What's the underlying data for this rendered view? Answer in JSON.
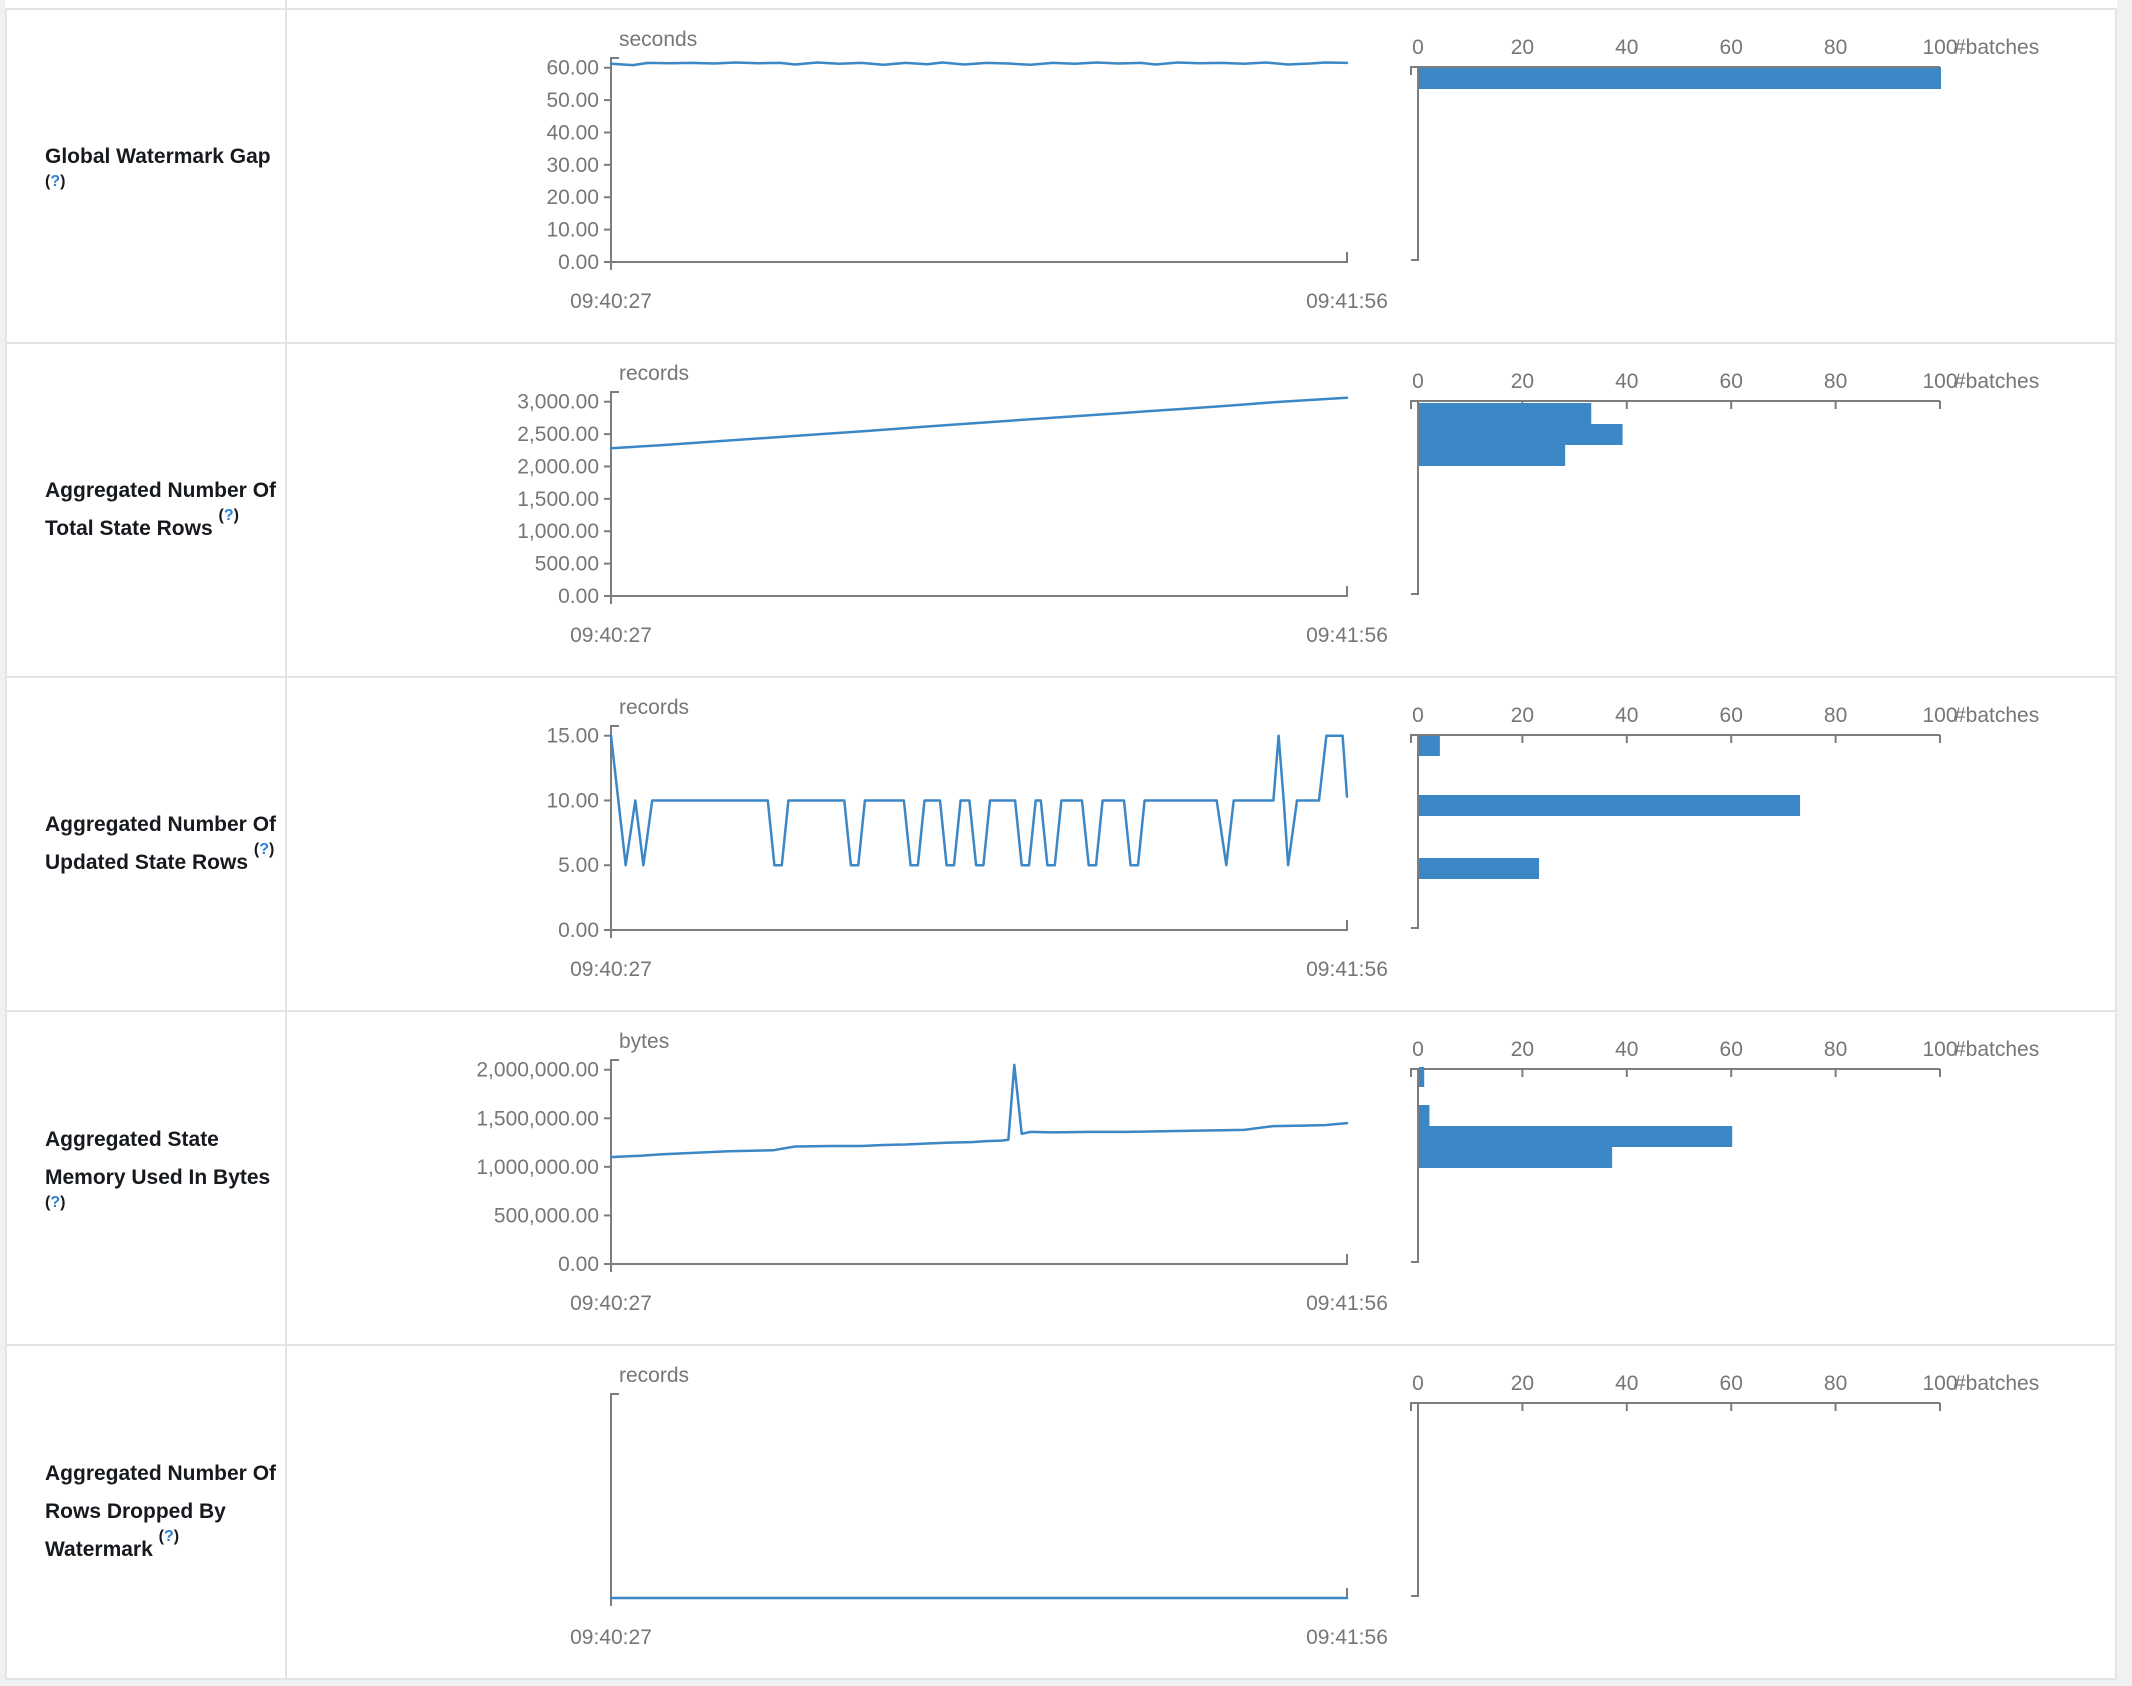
{
  "page": {
    "background": "#f0f1f3",
    "table_background": "#ffffff",
    "border_color": "#e2e5e8"
  },
  "colors": {
    "accent": "#3c87c5",
    "axis_line": "#7d7d7d",
    "tick_text": "#767676",
    "title_text": "#16191d",
    "help_blue": "#2f80d8"
  },
  "histogram_axis": {
    "tick_labels": [
      "0",
      "20",
      "40",
      "60",
      "80",
      "100"
    ],
    "tick_values": [
      0,
      20,
      40,
      60,
      80,
      100
    ],
    "max": 100,
    "axis_label": "#batches"
  },
  "x_axis": {
    "start_label": "09:40:27",
    "end_label": "09:41:56"
  },
  "chart_data": [
    {
      "type": "line",
      "title": "Global Watermark Gap",
      "help": "(?)",
      "unit": "seconds",
      "x_tick_labels": [
        "09:40:27",
        "09:41:56"
      ],
      "y_tick_labels": [
        "60.00",
        "50.00",
        "40.00",
        "30.00",
        "20.00",
        "10.00",
        "0.00"
      ],
      "y_tick_values": [
        60,
        50,
        40,
        30,
        20,
        10,
        0
      ],
      "y_plot_max": 63,
      "series": [
        [
          0,
          61.2
        ],
        [
          0.03,
          60.8
        ],
        [
          0.05,
          61.5
        ],
        [
          0.08,
          61.4
        ],
        [
          0.11,
          61.5
        ],
        [
          0.14,
          61.3
        ],
        [
          0.17,
          61.6
        ],
        [
          0.2,
          61.4
        ],
        [
          0.23,
          61.5
        ],
        [
          0.25,
          61.0
        ],
        [
          0.28,
          61.6
        ],
        [
          0.31,
          61.2
        ],
        [
          0.34,
          61.5
        ],
        [
          0.37,
          60.9
        ],
        [
          0.4,
          61.5
        ],
        [
          0.43,
          61.1
        ],
        [
          0.45,
          61.6
        ],
        [
          0.48,
          61.0
        ],
        [
          0.51,
          61.5
        ],
        [
          0.54,
          61.3
        ],
        [
          0.57,
          60.9
        ],
        [
          0.6,
          61.5
        ],
        [
          0.63,
          61.2
        ],
        [
          0.66,
          61.6
        ],
        [
          0.69,
          61.3
        ],
        [
          0.72,
          61.5
        ],
        [
          0.74,
          61.0
        ],
        [
          0.77,
          61.6
        ],
        [
          0.8,
          61.4
        ],
        [
          0.83,
          61.5
        ],
        [
          0.86,
          61.2
        ],
        [
          0.89,
          61.6
        ],
        [
          0.92,
          61.0
        ],
        [
          0.95,
          61.3
        ],
        [
          0.97,
          61.6
        ],
        [
          1,
          61.5
        ]
      ],
      "histogram_bars": [
        {
          "count": 100,
          "y": 58,
          "h": 21
        }
      ]
    },
    {
      "type": "line",
      "title": "Aggregated Number Of Total State Rows",
      "help": "(?)",
      "unit": "records",
      "x_tick_labels": [
        "09:40:27",
        "09:41:56"
      ],
      "y_tick_labels": [
        "3,000.00",
        "2,500.00",
        "2,000.00",
        "1,500.00",
        "1,000.00",
        "500.00",
        "0.00"
      ],
      "y_tick_values": [
        3000,
        2500,
        2000,
        1500,
        1000,
        500,
        0
      ],
      "y_plot_max": 3150,
      "series": [
        [
          0,
          2280
        ],
        [
          0.07,
          2330
        ],
        [
          0.14,
          2385
        ],
        [
          0.21,
          2440
        ],
        [
          0.28,
          2495
        ],
        [
          0.35,
          2550
        ],
        [
          0.42,
          2610
        ],
        [
          0.49,
          2665
        ],
        [
          0.56,
          2720
        ],
        [
          0.63,
          2775
        ],
        [
          0.7,
          2830
        ],
        [
          0.77,
          2885
        ],
        [
          0.84,
          2940
        ],
        [
          0.91,
          3000
        ],
        [
          1,
          3060
        ]
      ],
      "histogram_bars": [
        {
          "count": 33,
          "y": 59,
          "h": 21
        },
        {
          "count": 39,
          "y": 80,
          "h": 21
        },
        {
          "count": 28,
          "y": 101,
          "h": 21
        }
      ]
    },
    {
      "type": "line",
      "title": "Aggregated Number Of Updated State Rows",
      "help": "(?)",
      "unit": "records",
      "x_tick_labels": [
        "09:40:27",
        "09:41:56"
      ],
      "y_tick_labels": [
        "15.00",
        "10.00",
        "5.00",
        "0.00"
      ],
      "y_tick_values": [
        15,
        10,
        5,
        0
      ],
      "y_plot_max": 15.75,
      "series": [
        [
          0,
          15
        ],
        [
          0.02,
          5
        ],
        [
          0.033,
          10
        ],
        [
          0.044,
          5
        ],
        [
          0.056,
          10
        ],
        [
          0.213,
          10
        ],
        [
          0.222,
          5
        ],
        [
          0.232,
          5
        ],
        [
          0.241,
          10
        ],
        [
          0.317,
          10
        ],
        [
          0.326,
          5
        ],
        [
          0.336,
          5
        ],
        [
          0.345,
          10
        ],
        [
          0.398,
          10
        ],
        [
          0.407,
          5
        ],
        [
          0.417,
          5
        ],
        [
          0.426,
          10
        ],
        [
          0.447,
          10
        ],
        [
          0.456,
          5
        ],
        [
          0.466,
          5
        ],
        [
          0.475,
          10
        ],
        [
          0.487,
          10
        ],
        [
          0.496,
          5
        ],
        [
          0.506,
          5
        ],
        [
          0.515,
          10
        ],
        [
          0.549,
          10
        ],
        [
          0.558,
          5
        ],
        [
          0.568,
          5
        ],
        [
          0.577,
          10
        ],
        [
          0.584,
          10
        ],
        [
          0.593,
          5
        ],
        [
          0.603,
          5
        ],
        [
          0.612,
          10
        ],
        [
          0.64,
          10
        ],
        [
          0.649,
          5
        ],
        [
          0.659,
          5
        ],
        [
          0.668,
          10
        ],
        [
          0.697,
          10
        ],
        [
          0.706,
          5
        ],
        [
          0.716,
          5
        ],
        [
          0.725,
          10
        ],
        [
          0.823,
          10
        ],
        [
          0.836,
          5
        ],
        [
          0.846,
          10
        ],
        [
          0.9,
          10
        ],
        [
          0.907,
          15
        ],
        [
          0.914,
          10
        ],
        [
          0.92,
          5
        ],
        [
          0.932,
          10
        ],
        [
          0.962,
          10
        ],
        [
          0.972,
          15
        ],
        [
          0.994,
          15
        ],
        [
          1,
          10.3
        ]
      ],
      "histogram_bars": [
        {
          "count": 4,
          "y": 58,
          "h": 20
        },
        {
          "count": 73,
          "y": 117,
          "h": 21
        },
        {
          "count": 23,
          "y": 180,
          "h": 21
        }
      ]
    },
    {
      "type": "line",
      "title": "Aggregated State Memory Used In Bytes",
      "help": "(?)",
      "unit": "bytes",
      "x_tick_labels": [
        "09:40:27",
        "09:41:56"
      ],
      "y_tick_labels": [
        "2,000,000.00",
        "1,500,000.00",
        "1,000,000.00",
        "500,000.00",
        "0.00"
      ],
      "y_tick_values": [
        2000000,
        1500000,
        1000000,
        500000,
        0
      ],
      "y_plot_max": 2100000,
      "series": [
        [
          0,
          1100000
        ],
        [
          0.04,
          1115000
        ],
        [
          0.07,
          1130000
        ],
        [
          0.1,
          1140000
        ],
        [
          0.13,
          1150000
        ],
        [
          0.16,
          1160000
        ],
        [
          0.19,
          1165000
        ],
        [
          0.22,
          1170000
        ],
        [
          0.25,
          1210000
        ],
        [
          0.3,
          1215000
        ],
        [
          0.34,
          1215000
        ],
        [
          0.37,
          1225000
        ],
        [
          0.4,
          1230000
        ],
        [
          0.43,
          1240000
        ],
        [
          0.46,
          1250000
        ],
        [
          0.49,
          1255000
        ],
        [
          0.51,
          1265000
        ],
        [
          0.53,
          1270000
        ],
        [
          0.54,
          1280000
        ],
        [
          0.548,
          2050000
        ],
        [
          0.558,
          1340000
        ],
        [
          0.57,
          1360000
        ],
        [
          0.6,
          1355000
        ],
        [
          0.65,
          1360000
        ],
        [
          0.7,
          1360000
        ],
        [
          0.74,
          1365000
        ],
        [
          0.78,
          1370000
        ],
        [
          0.82,
          1375000
        ],
        [
          0.86,
          1380000
        ],
        [
          0.9,
          1420000
        ],
        [
          0.94,
          1425000
        ],
        [
          0.97,
          1430000
        ],
        [
          1,
          1450000
        ]
      ],
      "histogram_bars": [
        {
          "count": 1,
          "y": 55,
          "h": 20
        },
        {
          "count": 2,
          "y": 93,
          "h": 21
        },
        {
          "count": 60,
          "y": 114,
          "h": 21
        },
        {
          "count": 37,
          "y": 135,
          "h": 21
        }
      ]
    },
    {
      "type": "line",
      "title": "Aggregated Number Of Rows Dropped By Watermark",
      "help": "(?)",
      "unit": "records",
      "x_tick_labels": [
        "09:40:27",
        "09:41:56"
      ],
      "y_tick_labels": [],
      "y_tick_values": [],
      "y_plot_max": 1,
      "series": [
        [
          0,
          0
        ],
        [
          1,
          0
        ]
      ],
      "histogram_bars": []
    }
  ]
}
